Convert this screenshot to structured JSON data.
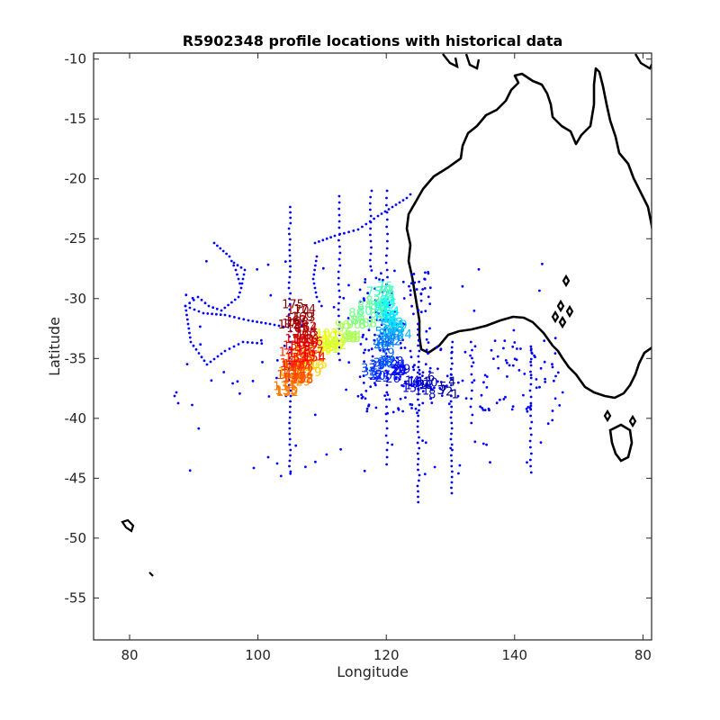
{
  "chart_data": {
    "type": "scatter",
    "title": "R5902348 profile locations with historical data",
    "xlabel": "Longitude",
    "ylabel": "Latitude",
    "x_tick_labels": [
      "80",
      "100",
      "120",
      "140",
      "80",
      "100",
      "120",
      "140",
      "80"
    ],
    "y_ticks": [
      -10,
      -15,
      -20,
      -25,
      -30,
      -35,
      -40,
      -45,
      -50,
      -55
    ],
    "ylim": [
      -58.5,
      -9.5
    ],
    "grid": false,
    "legend": "none",
    "series": [],
    "coastline_color": "#000000",
    "historical_color": "#0000ff",
    "profile_colormap": "jet"
  }
}
